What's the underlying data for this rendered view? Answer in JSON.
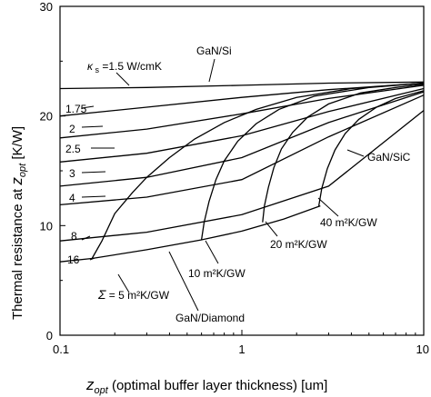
{
  "chart_data": {
    "type": "line",
    "x_scale": "log",
    "xlim": [
      0.1,
      10
    ],
    "ylim": [
      0,
      30
    ],
    "x_ticks": [
      "0.1",
      "1",
      "10"
    ],
    "y_ticks": [
      "0",
      "10",
      "20",
      "30"
    ],
    "xlabel": {
      "var": "z",
      "sub": "opt",
      "rest": " (optimal buffer layer thickness) [um]"
    },
    "ylabel": {
      "pre": "Thermal resistance at ",
      "var": "z",
      "sub": "opt",
      "rest": " [K/W]"
    },
    "grid": false,
    "legend": "none",
    "series": [
      {
        "name": "κs =1.5 W/cmK",
        "x": [
          0.1,
          0.3,
          1,
          3,
          10
        ],
        "y": [
          22.5,
          22.6,
          22.8,
          23.0,
          23.1
        ]
      },
      {
        "name": "1.75",
        "x": [
          0.1,
          0.3,
          1,
          3,
          10
        ],
        "y": [
          20.0,
          20.8,
          21.7,
          22.4,
          23.0
        ]
      },
      {
        "name": "2",
        "x": [
          0.1,
          0.3,
          1,
          3,
          10
        ],
        "y": [
          18.0,
          18.8,
          20.2,
          21.6,
          22.8
        ]
      },
      {
        "name": "2.5",
        "x": [
          0.1,
          0.3,
          1,
          3,
          10
        ],
        "y": [
          15.8,
          16.6,
          18.2,
          20.4,
          22.5
        ]
      },
      {
        "name": "3",
        "x": [
          0.1,
          0.3,
          1,
          3,
          10
        ],
        "y": [
          13.6,
          14.4,
          16.2,
          19.4,
          22.2
        ]
      },
      {
        "name": "4",
        "x": [
          0.1,
          0.3,
          1,
          3,
          10
        ],
        "y": [
          11.9,
          12.6,
          14.2,
          18.1,
          21.9
        ]
      },
      {
        "name": "8",
        "x": [
          0.1,
          0.3,
          1,
          3,
          10
        ],
        "y": [
          8.6,
          9.4,
          11.0,
          13.6,
          20.5
        ]
      },
      {
        "name": "16",
        "x": [
          0.1,
          0.15,
          0.3,
          0.6,
          1,
          1.7,
          2.7
        ],
        "y": [
          6.7,
          7.0,
          7.8,
          8.7,
          9.5,
          10.6,
          11.8
        ]
      },
      {
        "name": "Σ = 5 m²K/GW",
        "x": [
          0.15,
          0.17,
          0.2,
          0.25,
          0.3,
          0.4,
          0.55,
          0.8,
          1.2,
          2,
          4,
          10
        ],
        "y": [
          7.0,
          8.6,
          11.1,
          13.0,
          14.4,
          16.2,
          17.9,
          19.4,
          20.6,
          21.7,
          22.5,
          23.0
        ]
      },
      {
        "name": "10 m²K/GW",
        "x": [
          0.6,
          0.62,
          0.66,
          0.72,
          0.8,
          0.95,
          1.2,
          1.6,
          2.5,
          5,
          10
        ],
        "y": [
          8.7,
          10.3,
          12.2,
          14.2,
          15.9,
          17.7,
          19.3,
          20.6,
          21.8,
          22.6,
          23.0
        ]
      },
      {
        "name": "20 m²K/GW",
        "x": [
          1.3,
          1.33,
          1.4,
          1.5,
          1.65,
          1.9,
          2.3,
          3,
          4.5,
          7,
          10
        ],
        "y": [
          10.3,
          11.8,
          13.5,
          15.3,
          17.0,
          18.5,
          19.9,
          21.1,
          22.1,
          22.6,
          22.9
        ]
      },
      {
        "name": "40 m²K/GW",
        "x": [
          2.65,
          2.75,
          2.95,
          3.25,
          3.7,
          4.4,
          5.5,
          7,
          10
        ],
        "y": [
          11.8,
          13.4,
          15.2,
          16.9,
          18.4,
          19.7,
          20.8,
          21.6,
          22.3
        ]
      }
    ],
    "annotations": [
      "GaN/Si",
      "GaN/SiC",
      "GaN/Diamond"
    ]
  }
}
